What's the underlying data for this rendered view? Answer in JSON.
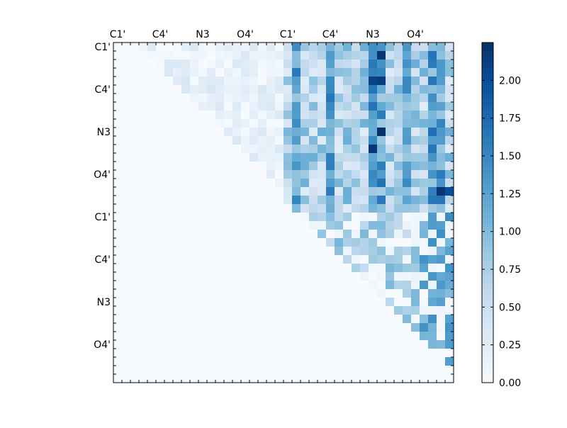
{
  "chart_data": {
    "type": "heatmap",
    "title": "",
    "xlabel": "",
    "ylabel": "",
    "x_tick_labels": [
      "C1'",
      "C4'",
      "N3",
      "O4'",
      "C1'",
      "C4'",
      "N3",
      "O4'"
    ],
    "y_tick_labels": [
      "C1'",
      "C4'",
      "N3",
      "O4'",
      "C1'",
      "C4'",
      "N3",
      "O4'"
    ],
    "n_rows": 40,
    "n_cols": 40,
    "x_tick_position": "top",
    "grid": false,
    "colormap": "Blues",
    "colorbar": {
      "range": [
        0.0,
        2.25
      ],
      "ticks": [
        0.0,
        0.25,
        0.5,
        0.75,
        1.0,
        1.25,
        1.5,
        1.75,
        2.0
      ],
      "tick_labels": [
        "0.00",
        "0.25",
        "0.50",
        "0.75",
        "1.00",
        "1.25",
        "1.50",
        "1.75",
        "2.00"
      ]
    },
    "blocks": [
      {
        "rows": "0-19",
        "cols": "0-19",
        "mean": 0.1
      },
      {
        "rows": "0-19",
        "cols": "20-39",
        "mean": 0.9
      },
      {
        "rows": "20-39",
        "cols": "20-39",
        "mean": 0.35
      },
      {
        "rows": "20-39",
        "cols": "0-19",
        "mean": 0.0
      }
    ],
    "hot_spots": [
      {
        "row": 1,
        "col": 31,
        "value": 2.2
      },
      {
        "row": 4,
        "col": 30,
        "value": 2.1
      },
      {
        "row": 4,
        "col": 31,
        "value": 2.15
      },
      {
        "row": 10,
        "col": 31,
        "value": 2.25
      },
      {
        "row": 12,
        "col": 30,
        "value": 2.2
      },
      {
        "row": 17,
        "col": 38,
        "value": 2.2
      },
      {
        "row": 17,
        "col": 39,
        "value": 2.0
      }
    ]
  },
  "colors": {
    "low": "#f7fbff",
    "high": "#08306b"
  }
}
